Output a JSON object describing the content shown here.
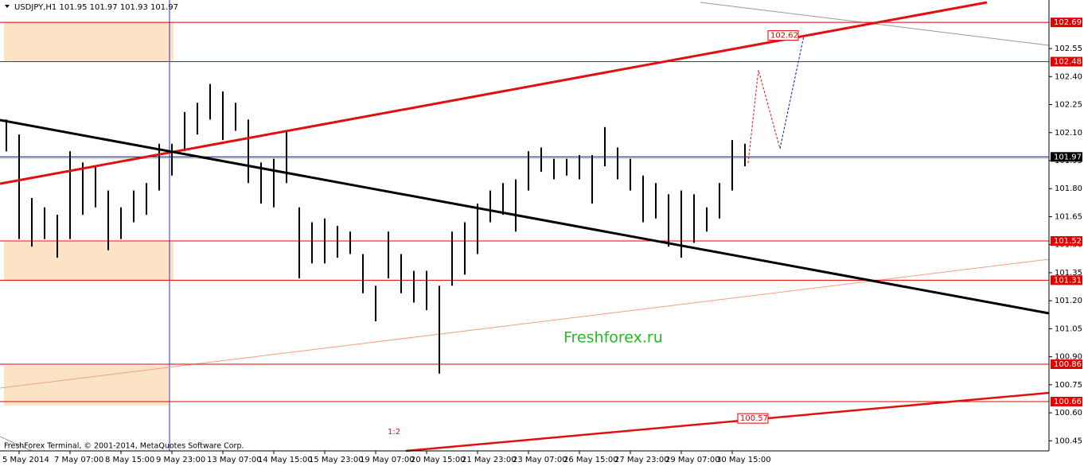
{
  "chart_data": {
    "type": "hl-bars",
    "title": "USDJPY,H1  101.95 101.97 101.93 101.97",
    "watermark": "Freshforex.ru",
    "copyright": "FreshForex Terminal, © 2001-2014, MetaQuotes Software Corp.",
    "ratio_note": "1:2",
    "color": "#000000",
    "categories": [
      null,
      "5 May 2014",
      null,
      null,
      null,
      "7 May 07:00",
      null,
      null,
      null,
      "8 May 15:00",
      null,
      null,
      null,
      "9 May 23:00",
      null,
      null,
      null,
      "13 May 07:00",
      null,
      null,
      null,
      "14 May 15:00",
      null,
      null,
      null,
      "15 May 23:00",
      null,
      null,
      null,
      "19 May 07:00",
      null,
      null,
      null,
      "20 May 15:00",
      null,
      null,
      null,
      "21 May 23:00",
      null,
      null,
      null,
      "23 May 07:00",
      null,
      null,
      null,
      "26 May 15:00",
      null,
      null,
      null,
      "27 May 23:00",
      null,
      null,
      null,
      "29 May 07:00",
      null,
      null,
      null,
      "30 May 15:00",
      null
    ],
    "high": [
      102.17,
      102.09,
      101.75,
      101.7,
      101.66,
      102.0,
      101.94,
      101.92,
      101.79,
      101.7,
      101.79,
      101.83,
      102.04,
      102.04,
      102.21,
      102.26,
      102.36,
      102.32,
      102.26,
      102.17,
      101.94,
      101.96,
      102.11,
      101.7,
      101.62,
      101.64,
      101.6,
      101.57,
      101.45,
      101.28,
      101.57,
      101.45,
      101.36,
      101.36,
      101.28,
      101.57,
      101.62,
      101.72,
      101.79,
      101.83,
      101.85,
      102.0,
      102.02,
      101.96,
      101.96,
      101.98,
      101.98,
      102.13,
      102.02,
      101.96,
      101.87,
      101.83,
      101.77,
      101.79,
      101.77,
      101.7,
      101.83,
      102.06,
      102.04
    ],
    "low": [
      102.0,
      101.53,
      101.49,
      101.53,
      101.43,
      101.53,
      101.66,
      101.7,
      101.47,
      101.53,
      101.62,
      101.66,
      101.79,
      101.87,
      102.0,
      102.09,
      102.17,
      102.06,
      102.11,
      101.83,
      101.72,
      101.7,
      101.83,
      101.32,
      101.4,
      101.4,
      101.43,
      101.45,
      101.24,
      101.09,
      101.32,
      101.24,
      101.19,
      101.15,
      100.81,
      101.28,
      101.34,
      101.45,
      101.62,
      101.66,
      101.57,
      101.79,
      101.89,
      101.85,
      101.87,
      101.85,
      101.72,
      101.92,
      101.85,
      101.79,
      101.62,
      101.64,
      101.49,
      101.43,
      101.51,
      101.57,
      101.64,
      101.79,
      101.92
    ],
    "ylim": [
      100.396,
      102.81
    ],
    "yticks": [
      {
        "value": 100.45,
        "label": "100.45"
      },
      {
        "value": 100.6,
        "label": "100.60"
      },
      100.75,
      {
        "value": 100.9,
        "label": "100.90"
      },
      101.05,
      {
        "value": 101.2,
        "label": "101.20"
      },
      101.35,
      {
        "value": 101.5,
        "label": "101.50"
      },
      101.65,
      {
        "value": 101.8,
        "label": "101.80"
      },
      101.95,
      {
        "value": 102.1,
        "label": "102.10"
      },
      102.25,
      {
        "value": 102.4,
        "label": "102.40"
      },
      102.55
    ],
    "levels": [
      102.69,
      102.48,
      101.52,
      101.31,
      100.86,
      100.66
    ],
    "level_color": "#e00000",
    "current_price": 101.97,
    "current_color": "#0000c0",
    "annotations": [
      102.62,
      100.57
    ]
  }
}
